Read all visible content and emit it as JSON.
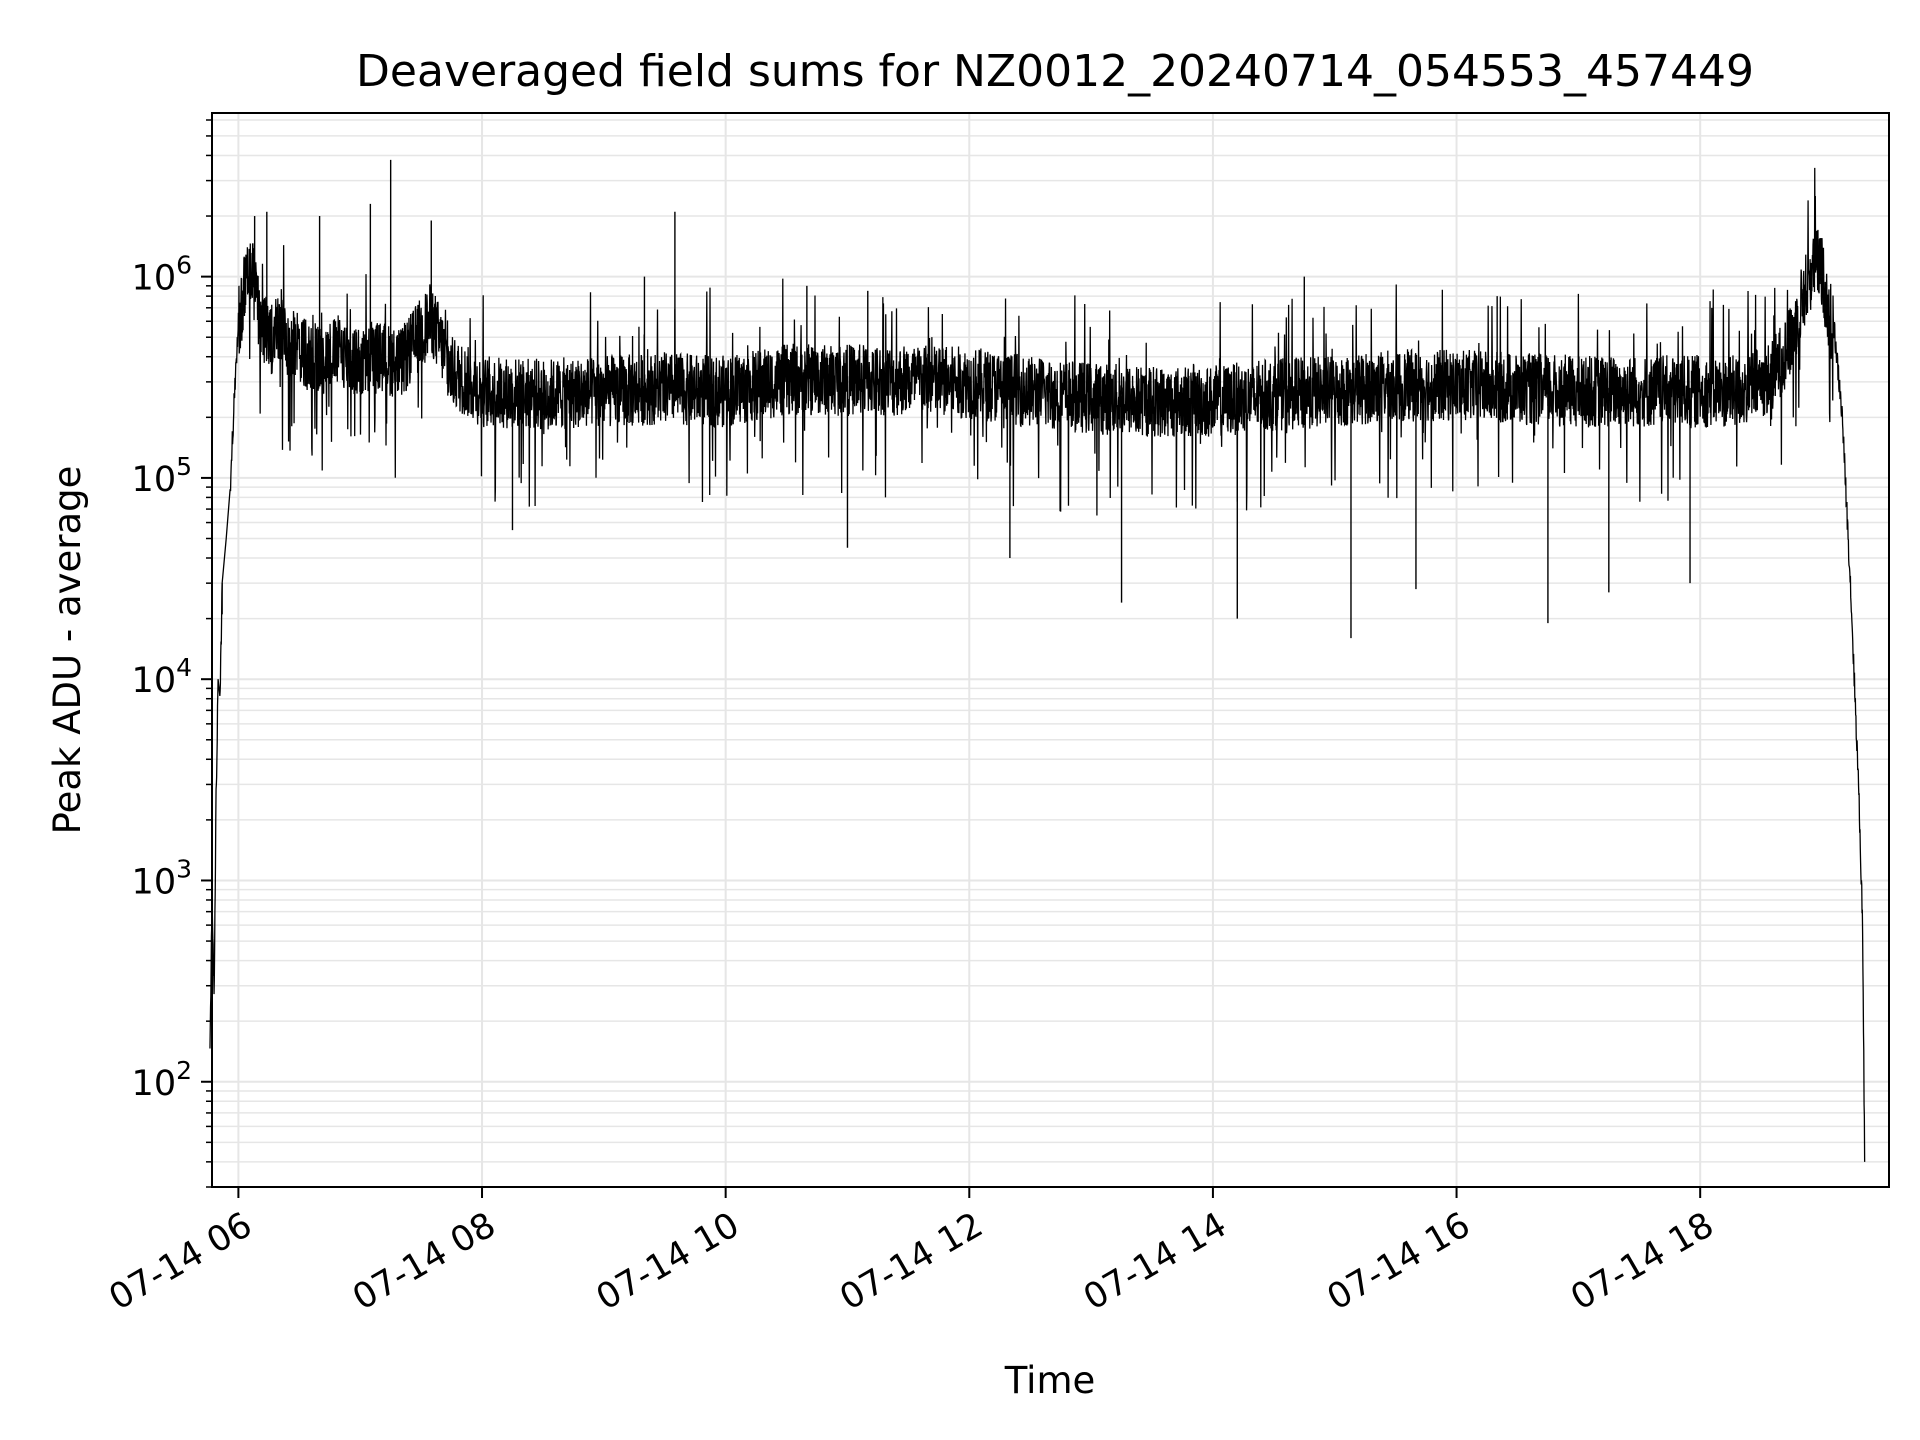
{
  "chart_data": {
    "type": "line",
    "title": "Deaveraged field sums for NZ0012_20240714_054553_457449",
    "xlabel": "Time",
    "ylabel": "Peak ADU - average",
    "xscale": "time",
    "yscale": "log",
    "xlim": [
      "2024-07-14 05:47",
      "2024-07-14 19:33"
    ],
    "ylim": [
      30,
      6500000
    ],
    "grid": true,
    "legend": "none",
    "line_color": "#000000",
    "grid_color": "#e6e6e6",
    "x_ticks": [
      {
        "value": "2024-07-14 06:00",
        "label": "07-14 06"
      },
      {
        "value": "2024-07-14 08:00",
        "label": "07-14 08"
      },
      {
        "value": "2024-07-14 10:00",
        "label": "07-14 10"
      },
      {
        "value": "2024-07-14 12:00",
        "label": "07-14 12"
      },
      {
        "value": "2024-07-14 14:00",
        "label": "07-14 14"
      },
      {
        "value": "2024-07-14 16:00",
        "label": "07-14 16"
      },
      {
        "value": "2024-07-14 18:00",
        "label": "07-14 18"
      }
    ],
    "y_ticks": [
      {
        "value": 100,
        "base": "10",
        "exp": "2"
      },
      {
        "value": 1000,
        "base": "10",
        "exp": "3"
      },
      {
        "value": 10000,
        "base": "10",
        "exp": "4"
      },
      {
        "value": 100000,
        "base": "10",
        "exp": "5"
      },
      {
        "value": 1000000,
        "base": "10",
        "exp": "6"
      }
    ],
    "series": [
      {
        "points": [
          [
            "2024-07-14 05:46",
            130
          ],
          [
            "2024-07-14 05:47",
            800
          ],
          [
            "2024-07-14 05:48",
            260
          ],
          [
            "2024-07-14 05:49",
            2500
          ],
          [
            "2024-07-14 05:50",
            10000
          ],
          [
            "2024-07-14 05:51",
            8000
          ],
          [
            "2024-07-14 05:52",
            30000
          ],
          [
            "2024-07-14 05:54",
            50000
          ],
          [
            "2024-07-14 05:56",
            90000
          ],
          [
            "2024-07-14 05:58",
            250000
          ],
          [
            "2024-07-14 06:00",
            600000
          ],
          [
            "2024-07-14 06:03",
            900000
          ],
          [
            "2024-07-14 06:06",
            1200000
          ],
          [
            "2024-07-14 06:10",
            700000
          ],
          [
            "2024-07-14 06:15",
            500000
          ],
          [
            "2024-07-14 06:20",
            550000
          ],
          [
            "2024-07-14 06:30",
            450000
          ],
          [
            "2024-07-14 06:40",
            400000
          ],
          [
            "2024-07-14 06:50",
            450000
          ],
          [
            "2024-07-14 07:00",
            380000
          ],
          [
            "2024-07-14 07:10",
            420000
          ],
          [
            "2024-07-14 07:20",
            380000
          ],
          [
            "2024-07-14 07:30",
            550000
          ],
          [
            "2024-07-14 07:35",
            650000
          ],
          [
            "2024-07-14 07:45",
            350000
          ],
          [
            "2024-07-14 08:00",
            280000
          ],
          [
            "2024-07-14 08:30",
            270000
          ],
          [
            "2024-07-14 09:00",
            280000
          ],
          [
            "2024-07-14 09:30",
            290000
          ],
          [
            "2024-07-14 10:00",
            280000
          ],
          [
            "2024-07-14 10:30",
            320000
          ],
          [
            "2024-07-14 11:00",
            320000
          ],
          [
            "2024-07-14 11:30",
            320000
          ],
          [
            "2024-07-14 12:00",
            310000
          ],
          [
            "2024-07-14 12:30",
            280000
          ],
          [
            "2024-07-14 13:00",
            260000
          ],
          [
            "2024-07-14 13:30",
            250000
          ],
          [
            "2024-07-14 14:00",
            250000
          ],
          [
            "2024-07-14 14:30",
            270000
          ],
          [
            "2024-07-14 15:00",
            280000
          ],
          [
            "2024-07-14 15:30",
            300000
          ],
          [
            "2024-07-14 16:00",
            300000
          ],
          [
            "2024-07-14 16:30",
            290000
          ],
          [
            "2024-07-14 17:00",
            280000
          ],
          [
            "2024-07-14 17:30",
            280000
          ],
          [
            "2024-07-14 18:00",
            280000
          ],
          [
            "2024-07-14 18:20",
            280000
          ],
          [
            "2024-07-14 18:35",
            330000
          ],
          [
            "2024-07-14 18:45",
            500000
          ],
          [
            "2024-07-14 18:50",
            800000
          ],
          [
            "2024-07-14 18:57",
            1250000
          ],
          [
            "2024-07-14 19:00",
            1100000
          ],
          [
            "2024-07-14 19:04",
            600000
          ],
          [
            "2024-07-14 19:06",
            550000
          ],
          [
            "2024-07-14 19:10",
            200000
          ],
          [
            "2024-07-14 19:14",
            30000
          ],
          [
            "2024-07-14 19:18",
            3000
          ],
          [
            "2024-07-14 19:20",
            600
          ],
          [
            "2024-07-14 19:21",
            40
          ]
        ],
        "spikes": [
          [
            "2024-07-14 06:08",
            2000000
          ],
          [
            "2024-07-14 06:14",
            2100000
          ],
          [
            "2024-07-14 06:40",
            2000000
          ],
          [
            "2024-07-14 07:05",
            2300000
          ],
          [
            "2024-07-14 07:15",
            3800000
          ],
          [
            "2024-07-14 07:35",
            1900000
          ],
          [
            "2024-07-14 09:20",
            1000000
          ],
          [
            "2024-07-14 09:35",
            2100000
          ],
          [
            "2024-07-14 10:40",
            900000
          ],
          [
            "2024-07-14 11:10",
            850000
          ],
          [
            "2024-07-14 14:45",
            1000000
          ],
          [
            "2024-07-14 16:20",
            800000
          ],
          [
            "2024-07-14 08:15",
            55000
          ],
          [
            "2024-07-14 11:00",
            45000
          ],
          [
            "2024-07-14 12:20",
            40000
          ],
          [
            "2024-07-14 13:15",
            24000
          ],
          [
            "2024-07-14 14:12",
            20000
          ],
          [
            "2024-07-14 15:08",
            16000
          ],
          [
            "2024-07-14 15:40",
            28000
          ],
          [
            "2024-07-14 16:45",
            19000
          ],
          [
            "2024-07-14 17:15",
            27000
          ],
          [
            "2024-07-14 17:55",
            30000
          ],
          [
            "2024-07-14 05:52",
            21000
          ]
        ]
      }
    ]
  }
}
